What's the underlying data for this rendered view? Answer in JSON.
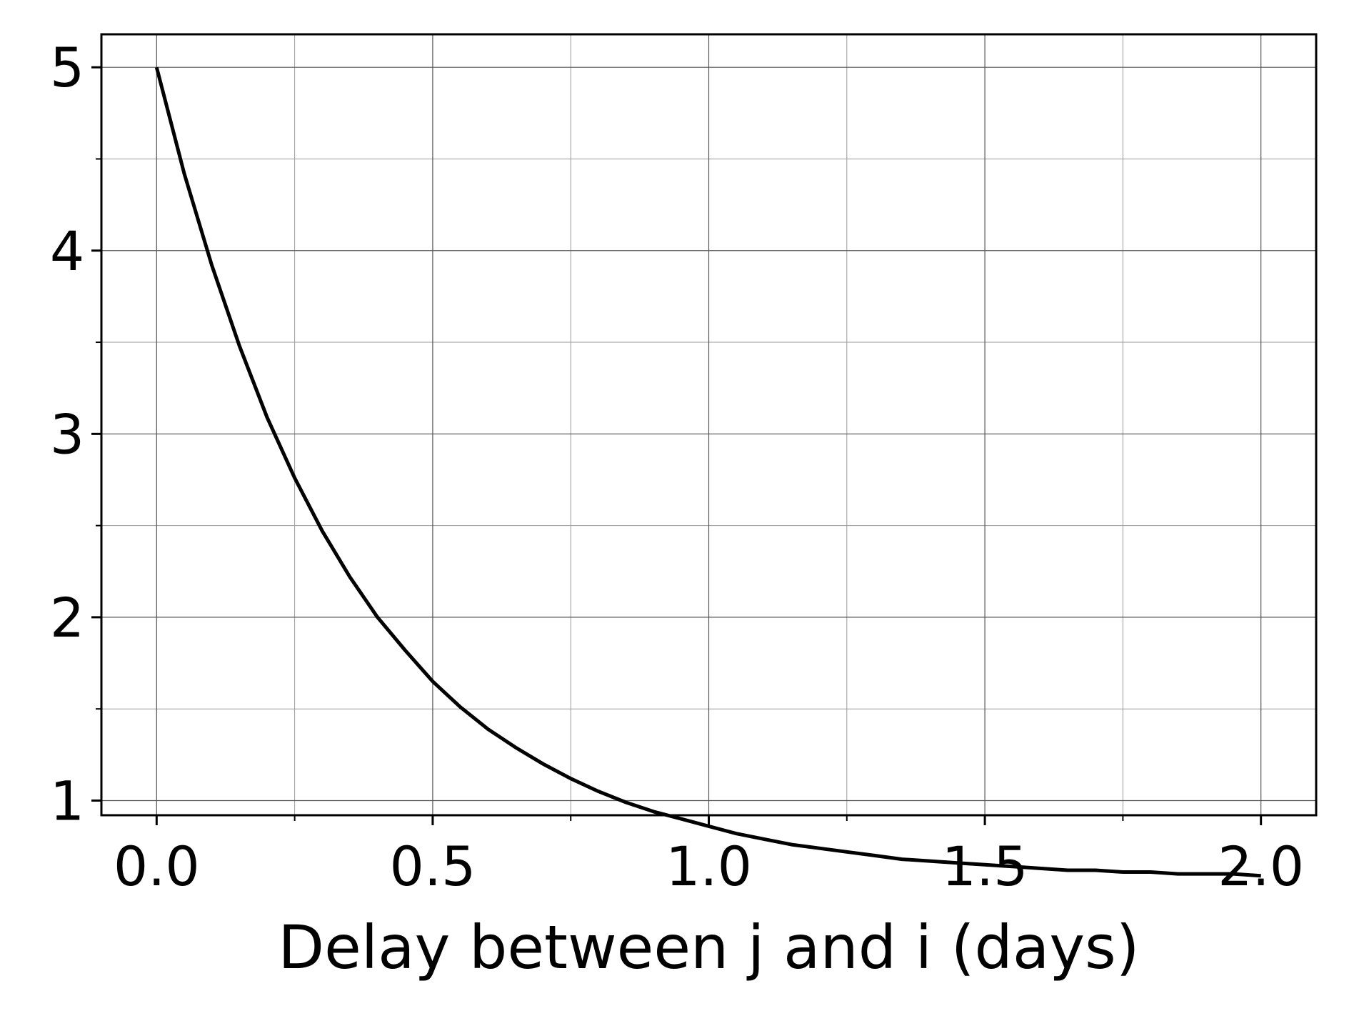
{
  "chart_data": {
    "type": "line",
    "title": "",
    "xlabel": "Delay between j and i (days)",
    "ylabel": "",
    "xlim": [
      -0.1,
      2.1
    ],
    "ylim": [
      0.92,
      5.18
    ],
    "x_ticks": [
      0.0,
      0.5,
      1.0,
      1.5,
      2.0
    ],
    "x_tick_labels": [
      "0.0",
      "0.5",
      "1.0",
      "1.5",
      "2.0"
    ],
    "y_ticks": [
      1,
      2,
      3,
      4,
      5
    ],
    "y_tick_labels": [
      "1",
      "2",
      "3",
      "4",
      "5"
    ],
    "minor_x_ticks": [
      0.25,
      0.75,
      1.25,
      1.75
    ],
    "minor_y_ticks": [
      1.5,
      2.5,
      3.5,
      4.5
    ],
    "grid": true,
    "legend": "none",
    "series": [
      {
        "color": "#000000",
        "x": [
          0.0,
          0.05,
          0.1,
          0.15,
          0.2,
          0.25,
          0.3,
          0.35,
          0.4,
          0.45,
          0.5,
          0.55,
          0.6,
          0.65,
          0.7,
          0.75,
          0.8,
          0.85,
          0.9,
          0.95,
          1.0,
          1.05,
          1.1,
          1.15,
          1.2,
          1.25,
          1.3,
          1.35,
          1.4,
          1.45,
          1.5,
          1.55,
          1.6,
          1.65,
          1.7,
          1.75,
          1.8,
          1.85,
          1.9,
          1.95,
          2.0
        ],
        "y": [
          5.0,
          4.42,
          3.92,
          3.48,
          3.09,
          2.76,
          2.47,
          2.22,
          2.0,
          1.82,
          1.65,
          1.51,
          1.39,
          1.29,
          1.2,
          1.12,
          1.05,
          0.99,
          0.94,
          0.9,
          0.86,
          0.82,
          0.79,
          0.76,
          0.74,
          0.72,
          0.7,
          0.68,
          0.67,
          0.66,
          0.65,
          0.64,
          0.63,
          0.62,
          0.62,
          0.61,
          0.61,
          0.6,
          0.6,
          0.6,
          0.59
        ]
      }
    ]
  }
}
